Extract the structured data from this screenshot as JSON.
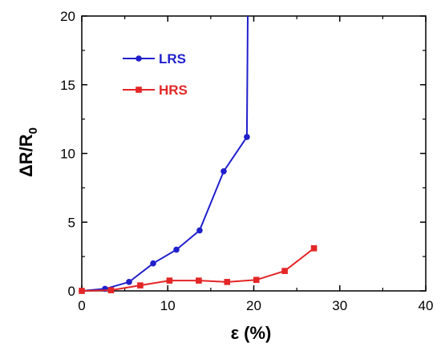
{
  "chart_data": {
    "type": "line",
    "xlabel": "ε (%)",
    "ylabel_main": "ΔR/R",
    "ylabel_sub": "0",
    "xlim": [
      0,
      40
    ],
    "ylim": [
      0,
      20
    ],
    "x_ticks": [
      0,
      10,
      20,
      30,
      40
    ],
    "y_ticks": [
      0,
      5,
      10,
      15,
      20
    ],
    "x_tick_labels": [
      "0",
      "10",
      "20",
      "30",
      "40"
    ],
    "y_tick_labels": [
      "0",
      "5",
      "10",
      "15",
      "20"
    ],
    "grid": false,
    "legend_position": "top-left",
    "series": [
      {
        "name": "LRS",
        "color": "#1f1fcc",
        "marker": "circle",
        "points": [
          [
            0,
            0
          ],
          [
            2.7,
            0.15
          ],
          [
            5.5,
            0.65
          ],
          [
            8.3,
            2.0
          ],
          [
            11.0,
            3.0
          ],
          [
            13.7,
            4.4
          ],
          [
            16.5,
            8.7
          ],
          [
            19.2,
            11.2
          ]
        ],
        "continues_to": [
          19.3,
          20
        ]
      },
      {
        "name": "HRS",
        "color": "#e32626",
        "marker": "square",
        "points": [
          [
            0,
            0
          ],
          [
            3.4,
            0.05
          ],
          [
            6.8,
            0.4
          ],
          [
            10.2,
            0.75
          ],
          [
            13.6,
            0.75
          ],
          [
            16.9,
            0.65
          ],
          [
            20.3,
            0.8
          ],
          [
            23.6,
            1.45
          ],
          [
            27.0,
            3.1
          ]
        ]
      }
    ]
  }
}
